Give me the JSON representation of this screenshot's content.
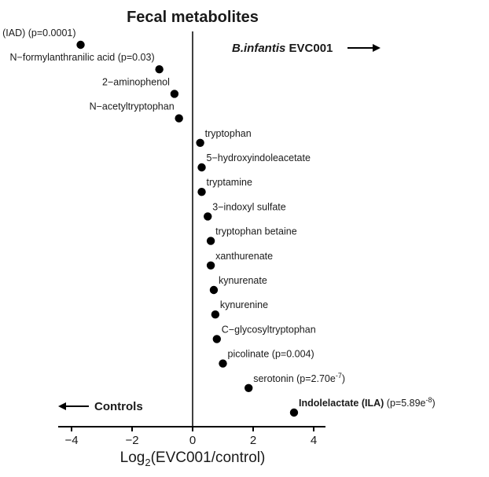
{
  "chart_data": {
    "type": "scatter",
    "title": "Fecal metabolites",
    "xlabel": "Log2(EVC001/control)",
    "xlabel_main": "Log",
    "xlabel_sub": "2",
    "xlabel_rest": "(EVC001/control)",
    "xlim": [
      -4.6,
      5.0
    ],
    "xticks": [
      -4,
      -2,
      0,
      2,
      4
    ],
    "xtick_labels": [
      "−4",
      "−2",
      "0",
      "2",
      "4"
    ],
    "grid": false,
    "arrow_right_label_italic": "B.infantis",
    "arrow_right_label_rest": " EVC001",
    "arrow_left_label": "Controls",
    "points": [
      {
        "label": "Indoleacetate (IAD)",
        "annotation": "(p=0.0001)",
        "x": -3.7,
        "side": "left",
        "bold": false
      },
      {
        "label": "N−formylanthranilic acid",
        "annotation": "(p=0.03)",
        "x": -1.1,
        "side": "left",
        "bold": false
      },
      {
        "label": "2−aminophenol",
        "annotation": "",
        "x": -0.6,
        "side": "left",
        "bold": false
      },
      {
        "label": "N−acetyltryptophan",
        "annotation": "",
        "x": -0.45,
        "side": "left",
        "bold": false
      },
      {
        "label": "tryptophan",
        "annotation": "",
        "x": 0.25,
        "side": "right",
        "bold": false
      },
      {
        "label": "5−hydroxyindoleacetate",
        "annotation": "",
        "x": 0.3,
        "side": "right",
        "bold": false
      },
      {
        "label": "tryptamine",
        "annotation": "",
        "x": 0.3,
        "side": "right",
        "bold": false
      },
      {
        "label": "3−indoxyl sulfate",
        "annotation": "",
        "x": 0.5,
        "side": "right",
        "bold": false
      },
      {
        "label": "tryptophan betaine",
        "annotation": "",
        "x": 0.6,
        "side": "right",
        "bold": false
      },
      {
        "label": "xanthurenate",
        "annotation": "",
        "x": 0.6,
        "side": "right",
        "bold": false
      },
      {
        "label": "kynurenate",
        "annotation": "",
        "x": 0.7,
        "side": "right",
        "bold": false
      },
      {
        "label": "kynurenine",
        "annotation": "",
        "x": 0.75,
        "side": "right",
        "bold": false
      },
      {
        "label": "C−glycosyltryptophan",
        "annotation": "",
        "x": 0.8,
        "side": "right",
        "bold": false
      },
      {
        "label": "picolinate",
        "annotation": "(p=0.004)",
        "x": 1.0,
        "side": "right",
        "bold": false
      },
      {
        "label": "serotonin",
        "annotation": "(p=2.70e-7)",
        "annotation_base": "(p=2.70e",
        "annotation_sup": "-7",
        "annotation_end": ")",
        "x": 1.85,
        "side": "right",
        "bold": false
      },
      {
        "label": "Indolelactate (ILA)",
        "annotation": "(p=5.89e-8)",
        "annotation_base": "(p=5.89e",
        "annotation_sup": "-8",
        "annotation_end": ")",
        "x": 3.35,
        "side": "right",
        "bold": true
      }
    ],
    "colors": {
      "marker": "#000000",
      "axis": "#000000",
      "text": "#1a1a1a"
    }
  }
}
